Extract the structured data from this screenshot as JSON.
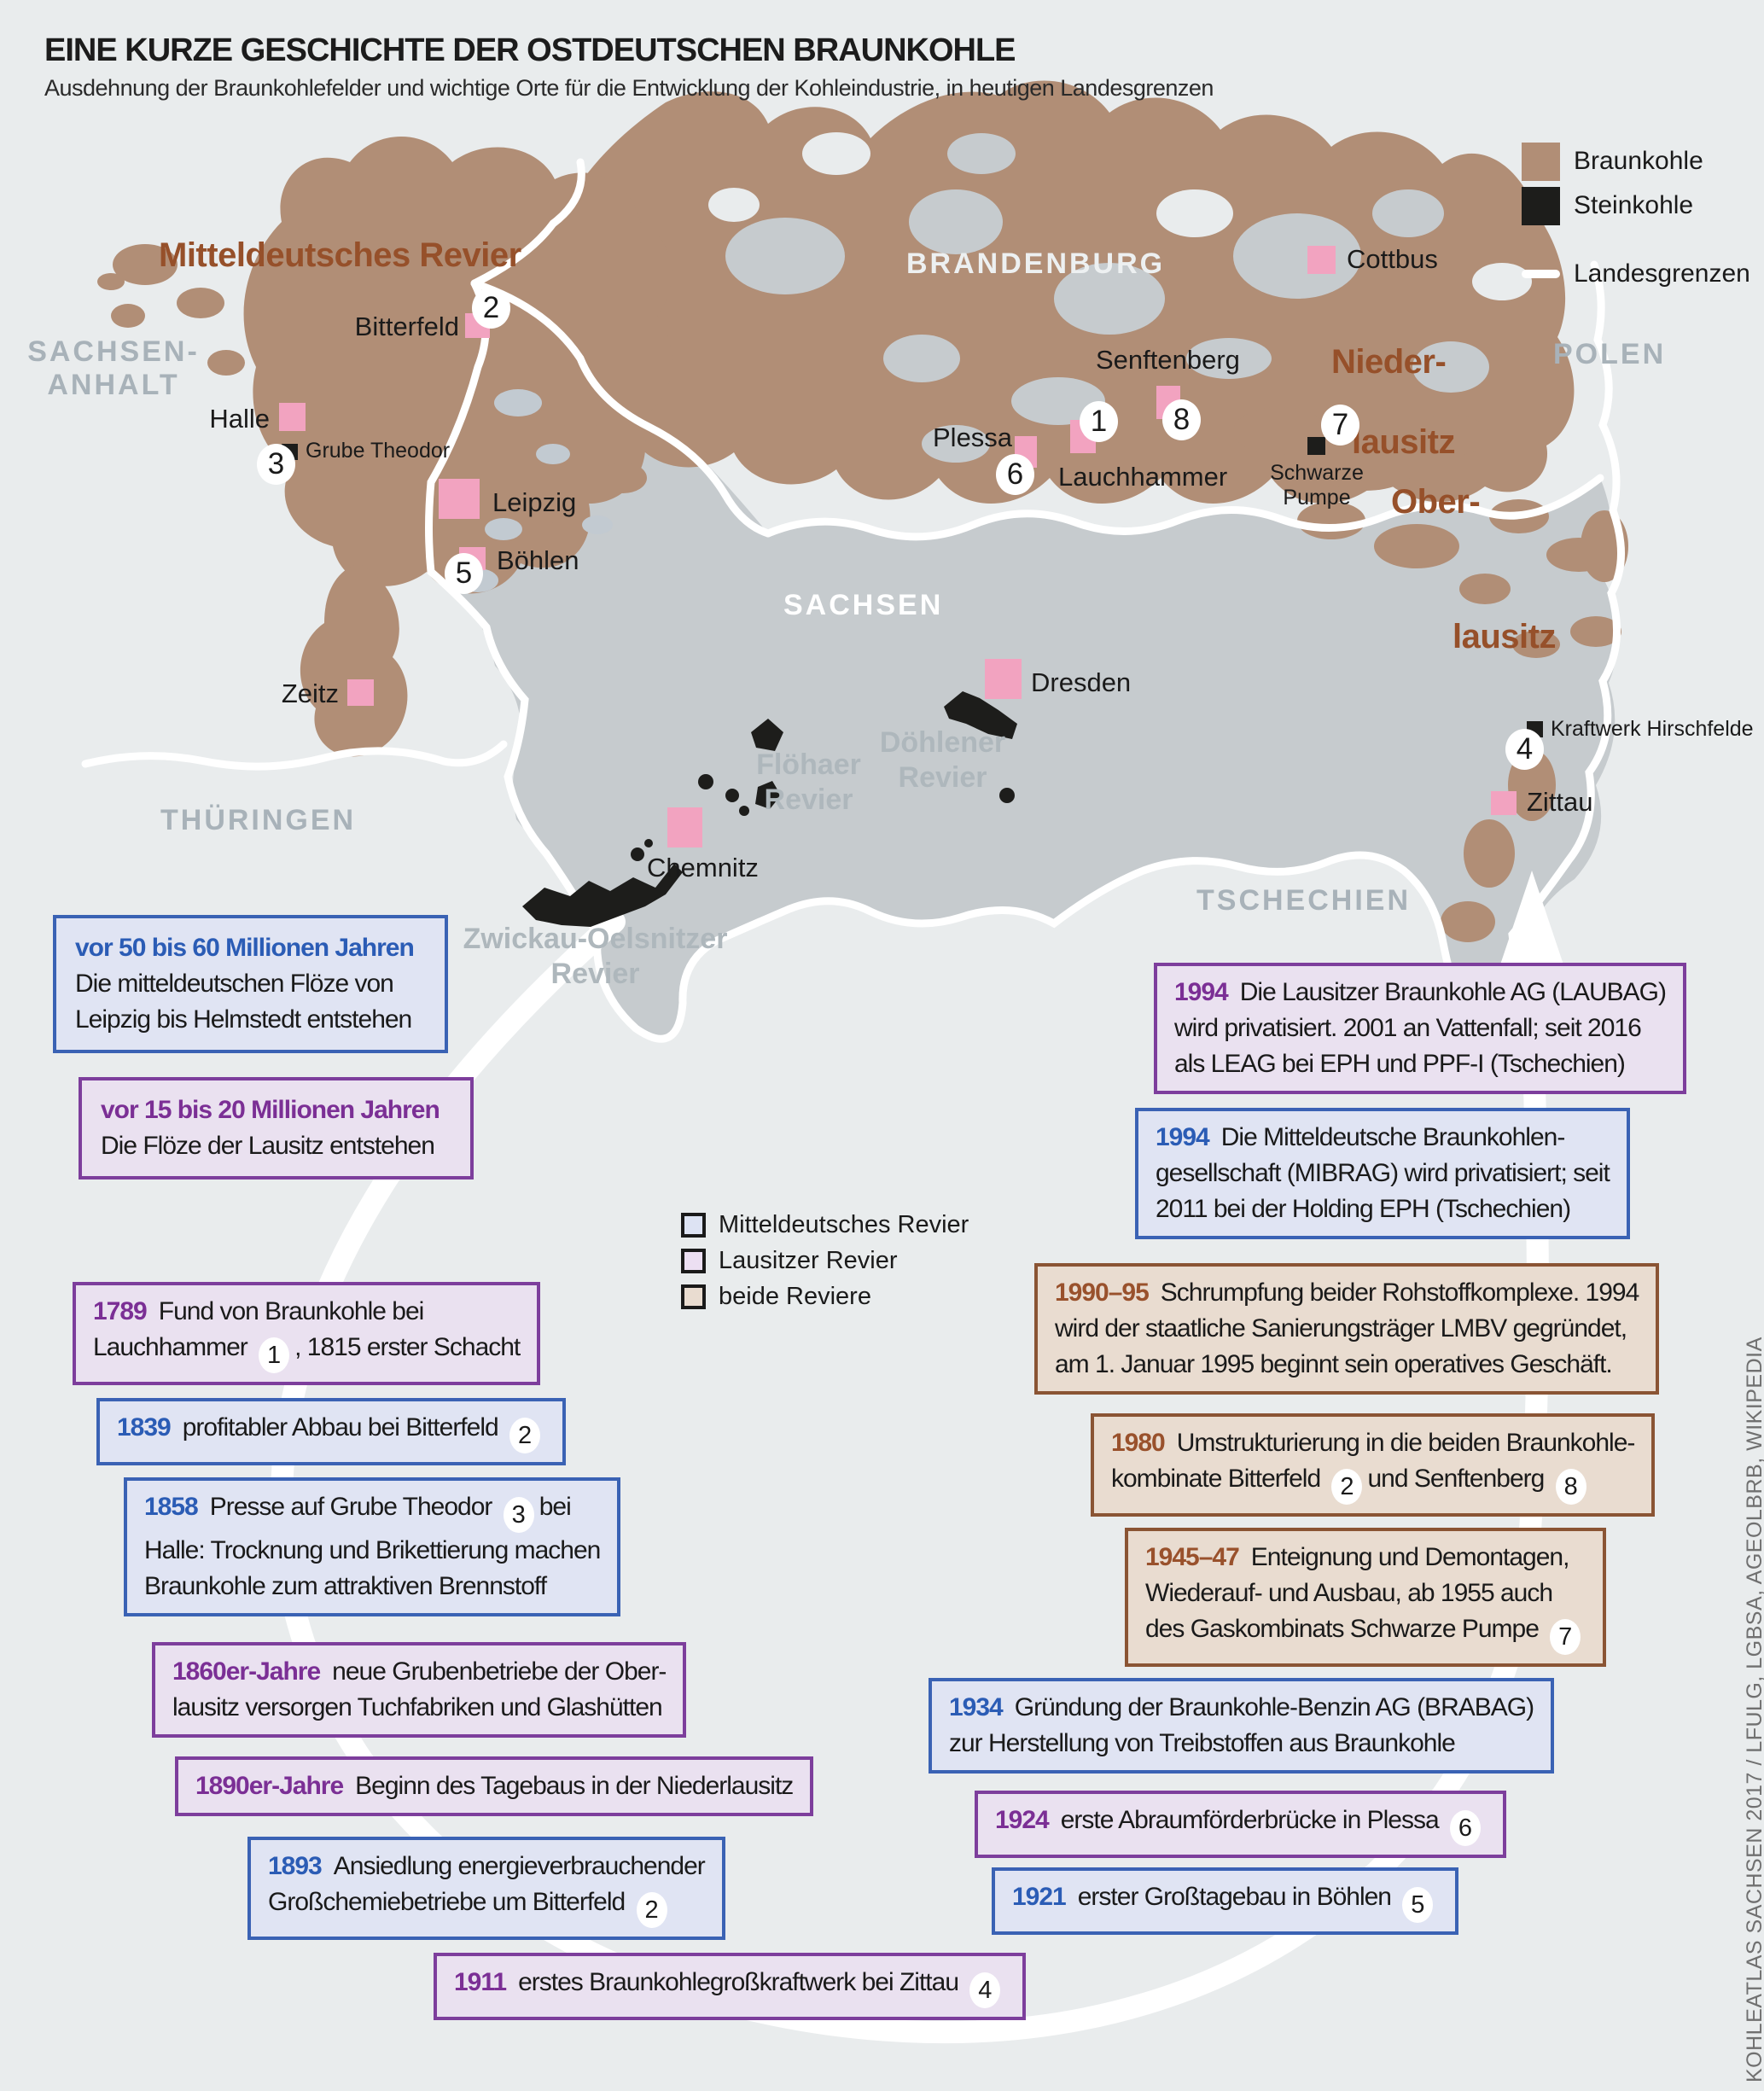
{
  "title": "EINE KURZE GESCHICHTE DER OSTDEUTSCHEN BRAUNKOHLE",
  "subtitle": "Ausdehnung der Braunkohlefelder und wichtige Orte für die Entwicklung der Kohleindustrie, in heutigen Landesgrenzen",
  "map_legend": {
    "braunkohle": "Braunkohle",
    "steinkohle": "Steinkohle",
    "landesgrenzen": "Landesgrenzen"
  },
  "colors": {
    "braunkohle": "#b18e76",
    "steinkohle": "#1d1d1b",
    "map_gray": "#c6cbce",
    "background": "#e9eced",
    "city_pink": "#f2a3c0",
    "mitteldeutsch_blue": "#3a62b4",
    "lausitz_purple": "#7d3e9c",
    "beide_brown": "#8a5434"
  },
  "regions": [
    {
      "id": "sachsen-anhalt",
      "lines": [
        "SACHSEN-",
        "ANHALT"
      ],
      "tone": "gray"
    },
    {
      "id": "brandenburg",
      "lines": [
        "BRANDENBURG"
      ],
      "tone": "light"
    },
    {
      "id": "polen",
      "lines": [
        "POLEN"
      ],
      "tone": "gray"
    },
    {
      "id": "thueringen",
      "lines": [
        "THÜRINGEN"
      ],
      "tone": "gray"
    },
    {
      "id": "tschechien",
      "lines": [
        "TSCHECHIEN"
      ],
      "tone": "gray"
    },
    {
      "id": "sachsen",
      "lines": [
        "SACHSEN"
      ],
      "tone": "white"
    }
  ],
  "reviers": [
    {
      "id": "mitteldeutsches",
      "lines": [
        "Mitteldeutsches Revier"
      ],
      "tone": "brown"
    },
    {
      "id": "nieder",
      "lines": [
        "Nieder-"
      ],
      "tone": "brown"
    },
    {
      "id": "lausitz-n",
      "lines": [
        "lausitz"
      ],
      "tone": "brown"
    },
    {
      "id": "ober",
      "lines": [
        "Ober-"
      ],
      "tone": "brown"
    },
    {
      "id": "lausitz-o",
      "lines": [
        "lausitz"
      ],
      "tone": "brown"
    },
    {
      "id": "floehaer",
      "lines": [
        "Flöhaer",
        "Revier"
      ],
      "tone": "gray"
    },
    {
      "id": "doehlener",
      "lines": [
        "Döhlener",
        "Revier"
      ],
      "tone": "gray"
    },
    {
      "id": "zwickau",
      "lines": [
        "Zwickau-Oelsnitzer",
        "Revier"
      ],
      "tone": "gray"
    }
  ],
  "cities": [
    {
      "id": "cottbus",
      "name": "Cottbus"
    },
    {
      "id": "bitterfeld",
      "name": "Bitterfeld"
    },
    {
      "id": "halle",
      "name": "Halle"
    },
    {
      "id": "leipzig",
      "name": "Leipzig"
    },
    {
      "id": "boehlen",
      "name": "Böhlen"
    },
    {
      "id": "zeitz",
      "name": "Zeitz"
    },
    {
      "id": "senftenberg",
      "name": "Senftenberg"
    },
    {
      "id": "plessa",
      "name": "Plessa"
    },
    {
      "id": "lauchhammer",
      "name": "Lauchhammer"
    },
    {
      "id": "dresden",
      "name": "Dresden"
    },
    {
      "id": "chemnitz",
      "name": "Chemnitz"
    },
    {
      "id": "zittau",
      "name": "Zittau"
    }
  ],
  "pois": [
    {
      "id": "grube-theodor",
      "lines": [
        "Grube Theodor"
      ]
    },
    {
      "id": "schwarze-pumpe",
      "lines": [
        "Schwarze",
        "Pumpe"
      ]
    },
    {
      "id": "hirschfelde",
      "lines": [
        "Kraftwerk Hirschfelde"
      ]
    }
  ],
  "map_numbers": [
    {
      "n": "1"
    },
    {
      "n": "2"
    },
    {
      "n": "3"
    },
    {
      "n": "4"
    },
    {
      "n": "5"
    },
    {
      "n": "6"
    },
    {
      "n": "7"
    },
    {
      "n": "8"
    }
  ],
  "box_legend": [
    {
      "label": "Mitteldeutsches Revier",
      "theme": "blue"
    },
    {
      "label": "Lausitzer Revier",
      "theme": "purple"
    },
    {
      "label": "beide Reviere",
      "theme": "brown"
    }
  ],
  "timeline": [
    {
      "id": "l1",
      "theme": "blue",
      "geo": true,
      "year": "vor 50 bis 60 Millionen Jahren",
      "parts": [
        {
          "br": true
        },
        {
          "t": "Die mitteldeutschen Flöze von"
        },
        {
          "br": true
        },
        {
          "t": "Leipzig bis Helmstedt entstehen"
        }
      ]
    },
    {
      "id": "l2",
      "theme": "purple",
      "geo": true,
      "year": "vor 15 bis 20 Millionen Jahren",
      "parts": [
        {
          "br": true
        },
        {
          "t": "Die Flöze der Lausitz entstehen"
        }
      ]
    },
    {
      "id": "l3",
      "theme": "purple",
      "year": "1789",
      "parts": [
        {
          "t": "Fund von Braunkohle bei"
        },
        {
          "br": true
        },
        {
          "t": "Lauchhammer"
        },
        {
          "num": "1"
        },
        {
          "t": ", 1815 erster Schacht"
        }
      ]
    },
    {
      "id": "l4",
      "theme": "blue",
      "year": "1839",
      "parts": [
        {
          "t": "profitabler Abbau bei Bitterfeld"
        },
        {
          "num": "2"
        }
      ]
    },
    {
      "id": "l5",
      "theme": "blue",
      "year": "1858",
      "parts": [
        {
          "t": "Presse auf Grube Theodor"
        },
        {
          "num": "3"
        },
        {
          "t": "bei"
        },
        {
          "br": true
        },
        {
          "t": "Halle: Trocknung und Brikettierung machen"
        },
        {
          "br": true
        },
        {
          "t": "Braunkohle zum attraktiven Brennstoff"
        }
      ]
    },
    {
      "id": "l6",
      "theme": "purple",
      "year": "1860er-Jahre",
      "parts": [
        {
          "t": "neue Grubenbetriebe der Ober-"
        },
        {
          "br": true
        },
        {
          "t": "lausitz versorgen Tuchfabriken und Glashütten"
        }
      ]
    },
    {
      "id": "l7",
      "theme": "purple",
      "year": "1890er-Jahre",
      "parts": [
        {
          "t": "Beginn des Tagebaus in der Niederlausitz"
        }
      ]
    },
    {
      "id": "l8",
      "theme": "blue",
      "year": "1893",
      "parts": [
        {
          "t": "Ansiedlung energieverbrauchender"
        },
        {
          "br": true
        },
        {
          "t": "Großchemiebetriebe um Bitterfeld"
        },
        {
          "num": "2"
        }
      ]
    },
    {
      "id": "l9",
      "theme": "purple",
      "year": "1911",
      "parts": [
        {
          "t": "erstes Braunkohlegroßkraftwerk bei Zittau"
        },
        {
          "num": "4"
        }
      ]
    },
    {
      "id": "r1",
      "theme": "purple",
      "year": "1994",
      "parts": [
        {
          "t": "Die Lausitzer Braunkohle AG (LAUBAG)"
        },
        {
          "br": true
        },
        {
          "t": "wird privatisiert. 2001 an Vattenfall; seit 2016"
        },
        {
          "br": true
        },
        {
          "t": "als LEAG bei EPH und PPF-I (Tschechien)"
        }
      ]
    },
    {
      "id": "r2",
      "theme": "blue",
      "year": "1994",
      "parts": [
        {
          "t": "Die Mitteldeutsche Braunkohlen-"
        },
        {
          "br": true
        },
        {
          "t": "gesellschaft (MIBRAG) wird privatisiert; seit"
        },
        {
          "br": true
        },
        {
          "t": "2011 bei der Holding EPH (Tschechien)"
        }
      ]
    },
    {
      "id": "r3",
      "theme": "brown",
      "year": "1990–95",
      "parts": [
        {
          "t": "Schrumpfung beider Rohstoffkomplexe. 1994"
        },
        {
          "br": true
        },
        {
          "t": "wird der staatliche Sanierungsträger LMBV gegründet,"
        },
        {
          "br": true
        },
        {
          "t": "am 1. Januar 1995 beginnt sein operatives Geschäft."
        }
      ]
    },
    {
      "id": "r4",
      "theme": "brown",
      "year": "1980",
      "parts": [
        {
          "t": "Umstrukturierung in die beiden Braunkohle-"
        },
        {
          "br": true
        },
        {
          "t": "kombinate Bitterfeld"
        },
        {
          "num": "2"
        },
        {
          "t": "und Senftenberg"
        },
        {
          "num": "8"
        }
      ]
    },
    {
      "id": "r5",
      "theme": "brown",
      "year": "1945–47",
      "parts": [
        {
          "t": "Enteignung und Demontagen,"
        },
        {
          "br": true
        },
        {
          "t": "Wiederauf- und Ausbau, ab 1955 auch"
        },
        {
          "br": true
        },
        {
          "t": "des Gaskombinats Schwarze Pumpe"
        },
        {
          "num": "7"
        }
      ]
    },
    {
      "id": "r6",
      "theme": "blue",
      "year": "1934",
      "parts": [
        {
          "t": "Gründung der Braunkohle-Benzin AG (BRABAG)"
        },
        {
          "br": true
        },
        {
          "t": "zur Herstellung von Treibstoffen aus Braunkohle"
        }
      ]
    },
    {
      "id": "r7",
      "theme": "purple",
      "year": "1924",
      "parts": [
        {
          "t": "erste Abraumförderbrücke in Plessa"
        },
        {
          "num": "6"
        }
      ]
    },
    {
      "id": "r8",
      "theme": "blue",
      "year": "1921",
      "parts": [
        {
          "t": "erster Großtagebau in Böhlen"
        },
        {
          "num": "5"
        }
      ]
    }
  ],
  "credit": "KOHLEATLAS SACHSEN 2017 / LFULG, LGBSA, AGEOLBRB, WIKIPEDIA"
}
